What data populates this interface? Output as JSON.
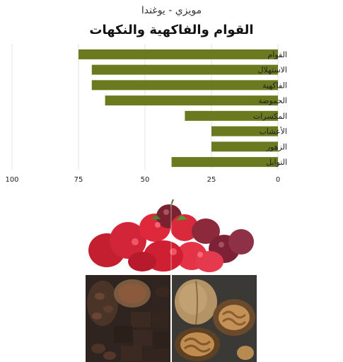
{
  "header": {
    "subtitle": "مويزي - يوغندا",
    "title": "القوام والفاكهية والنكهات"
  },
  "chart_data": {
    "type": "bar",
    "orientation": "horizontal",
    "title": "القوام والفاكهية والنكهات",
    "subtitle": "مويزي - يوغندا",
    "categories": [
      "القوام",
      "الاستهلال",
      "الفاكهية",
      "الحموضة",
      "المكسرات",
      "الأعشاب",
      "الزهور",
      "التوابل"
    ],
    "values": [
      75,
      70,
      70,
      65,
      35,
      25,
      25,
      40
    ],
    "xlim": [
      0,
      100
    ],
    "x_reversed": true,
    "xticks": [
      100,
      75,
      50,
      25,
      0
    ],
    "grid": true,
    "color": "#6b7a1f"
  },
  "colors": {
    "bar": "#6b7a1f",
    "grid": "#e3e3e3",
    "axis": "#555555"
  }
}
